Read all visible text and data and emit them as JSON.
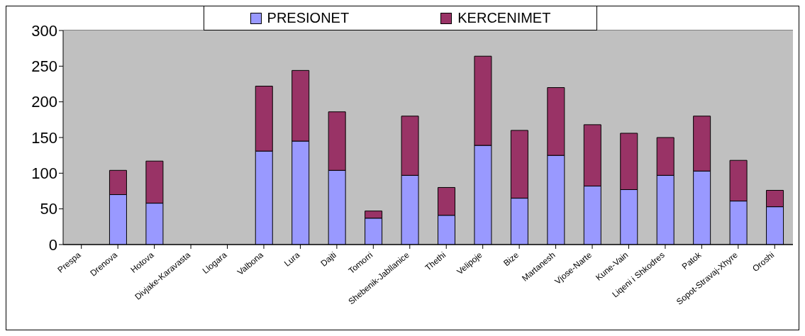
{
  "chart_data": {
    "type": "bar",
    "stacked": true,
    "categories": [
      "Prespa",
      "Drenova",
      "Hotova",
      "Divjake-Karavasta",
      "Llogara",
      "Valbona",
      "Lura",
      "Dajti",
      "Tomorri",
      "Shebenik-Jabllanice",
      "Thethi",
      "Velipoje",
      "Bize",
      "Martanesh",
      "Vjose-Narte",
      "Kune-Vain",
      "Liqeni i Shkodres",
      "Patok",
      "Sopot-Stravaj-Xhyre",
      "Oroshi"
    ],
    "series": [
      {
        "name": "PRESIONET",
        "color": "#9999ff",
        "values": [
          null,
          70,
          58,
          null,
          null,
          131,
          145,
          104,
          37,
          97,
          41,
          139,
          65,
          125,
          82,
          77,
          97,
          103,
          61,
          53
        ]
      },
      {
        "name": "KERCENIMET",
        "color": "#993366",
        "values": [
          null,
          34,
          59,
          null,
          null,
          91,
          99,
          82,
          10,
          83,
          39,
          125,
          95,
          95,
          86,
          79,
          53,
          77,
          57,
          23
        ]
      }
    ],
    "ylim": [
      0,
      300
    ],
    "yticks": [
      0,
      50,
      100,
      150,
      200,
      250,
      300
    ],
    "grid": "y",
    "legend": "top"
  }
}
